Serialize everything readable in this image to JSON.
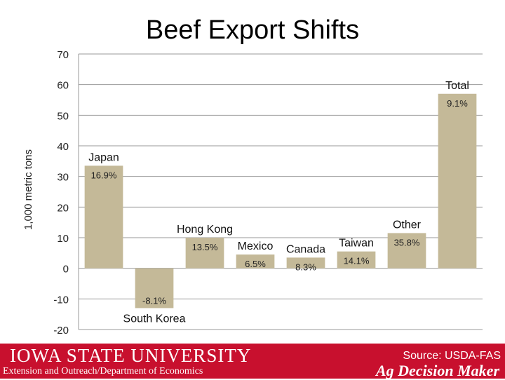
{
  "title": "Beef Export Shifts",
  "chart_data": {
    "type": "bar",
    "title": "Beef Export Shifts",
    "ylabel": "1,000 metric tons",
    "xlabel": "",
    "ylim": [
      -20,
      70
    ],
    "yticks": [
      70,
      60,
      50,
      40,
      30,
      20,
      10,
      0,
      -10,
      -20
    ],
    "grid": true,
    "categories": [
      "Japan",
      "South Korea",
      "Hong Kong",
      "Mexico",
      "Canada",
      "Taiwan",
      "Other",
      "Total"
    ],
    "values": [
      33.5,
      -13,
      10,
      4.5,
      3.5,
      5.5,
      11.5,
      57
    ],
    "data_labels": [
      "16.9%",
      "-8.1%",
      "13.5%",
      "6.5%",
      "8.3%",
      "14.1%",
      "35.8%",
      "9.1%"
    ],
    "bar_color": "#c4b998"
  },
  "footer": {
    "university": "IOWA STATE UNIVERSITY",
    "extension": "Extension and Outreach/Department of Economics",
    "source": "Source: USDA-FAS",
    "brand": "Ag Decision Maker",
    "color": "#c8102e"
  }
}
